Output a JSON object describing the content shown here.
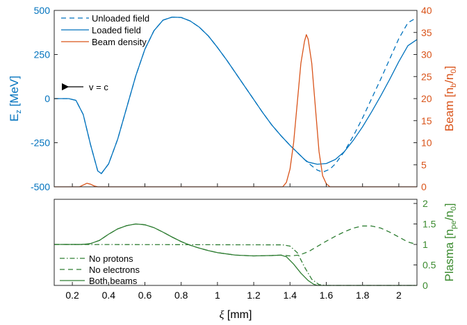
{
  "colors": {
    "left_axis": "#0072BD",
    "right_axis": "#D95319",
    "plasma_axis": "#3A8A2E",
    "field": "#0072BD",
    "beam": "#D95319",
    "plasma": "#2E7D32",
    "axis": "#262626"
  },
  "annotation": {
    "text": "v = c",
    "arrow_direction": "left"
  },
  "chart_data": [
    {
      "type": "line",
      "panel": "top",
      "ylabel_left": "E_z [MeV]",
      "ylabel_right": "Beam [n_b/n_0]",
      "xlim": [
        0.1,
        2.1
      ],
      "ylim_left": [
        -500,
        500
      ],
      "ylim_right": [
        0,
        40
      ],
      "yticks_left": [
        -500,
        -250,
        0,
        250,
        500
      ],
      "yticks_right": [
        0,
        5,
        10,
        15,
        20,
        25,
        30,
        35,
        40
      ],
      "legend": [
        "Unloaded field",
        "Loaded field",
        "Beam density"
      ],
      "legend_position": "top-left",
      "series": [
        {
          "name": "Unloaded field",
          "axis": "left",
          "style": "dashed",
          "x": [
            0.1,
            0.18,
            0.22,
            0.26,
            0.3,
            0.34,
            0.36,
            0.4,
            0.45,
            0.5,
            0.55,
            0.6,
            0.65,
            0.7,
            0.75,
            0.8,
            0.85,
            0.9,
            0.95,
            1.0,
            1.05,
            1.1,
            1.15,
            1.2,
            1.25,
            1.3,
            1.35,
            1.4,
            1.45,
            1.5,
            1.55,
            1.58,
            1.62,
            1.65,
            1.7,
            1.75,
            1.8,
            1.85,
            1.9,
            1.95,
            2.0,
            2.05,
            2.1
          ],
          "y": [
            0,
            0,
            -10,
            -90,
            -260,
            -410,
            -425,
            -370,
            -230,
            -50,
            130,
            280,
            385,
            445,
            462,
            460,
            440,
            405,
            355,
            290,
            220,
            145,
            70,
            -5,
            -80,
            -150,
            -210,
            -265,
            -315,
            -365,
            -405,
            -417,
            -400,
            -370,
            -300,
            -210,
            -110,
            0,
            110,
            225,
            340,
            430,
            460
          ]
        },
        {
          "name": "Loaded field",
          "axis": "left",
          "style": "solid",
          "x": [
            0.1,
            0.18,
            0.22,
            0.26,
            0.3,
            0.34,
            0.36,
            0.4,
            0.45,
            0.5,
            0.55,
            0.6,
            0.65,
            0.7,
            0.75,
            0.8,
            0.85,
            0.9,
            0.95,
            1.0,
            1.05,
            1.1,
            1.15,
            1.2,
            1.25,
            1.3,
            1.35,
            1.4,
            1.45,
            1.48,
            1.5,
            1.55,
            1.6,
            1.65,
            1.7,
            1.75,
            1.8,
            1.85,
            1.9,
            1.95,
            2.0,
            2.05,
            2.1
          ],
          "y": [
            0,
            0,
            -10,
            -90,
            -260,
            -410,
            -425,
            -370,
            -230,
            -50,
            130,
            280,
            385,
            445,
            462,
            460,
            440,
            405,
            355,
            290,
            220,
            145,
            70,
            -5,
            -80,
            -150,
            -210,
            -265,
            -315,
            -345,
            -360,
            -372,
            -368,
            -345,
            -300,
            -235,
            -160,
            -75,
            15,
            110,
            210,
            300,
            335
          ]
        },
        {
          "name": "Beam density",
          "axis": "right",
          "style": "solid",
          "x": [
            0.1,
            0.24,
            0.26,
            0.28,
            0.3,
            0.32,
            0.34,
            1.36,
            1.38,
            1.4,
            1.42,
            1.44,
            1.46,
            1.48,
            1.49,
            1.5,
            1.52,
            1.54,
            1.56,
            1.58,
            1.6,
            1.62,
            2.1
          ],
          "y": [
            0,
            0,
            0.4,
            0.8,
            0.6,
            0.2,
            0,
            0,
            1,
            4,
            10,
            19,
            28,
            33,
            34.5,
            33.5,
            28,
            18,
            8,
            2.5,
            0.7,
            0,
            0
          ]
        }
      ]
    },
    {
      "type": "line",
      "panel": "bottom",
      "xlabel": "ξ [mm]",
      "ylabel_right": "Plasma [n_pe/n_0]",
      "xlim": [
        0.1,
        2.1
      ],
      "xticks": [
        0.2,
        0.4,
        0.6,
        0.8,
        1,
        1.2,
        1.4,
        1.6,
        1.8,
        2
      ],
      "ylim_right": [
        0,
        2
      ],
      "yticks_right": [
        0,
        0.5,
        1,
        1.5,
        2
      ],
      "legend": [
        "No protons",
        "No electrons",
        "Both beams"
      ],
      "legend_position": "bottom-left",
      "series": [
        {
          "name": "No protons",
          "style": "dashdot",
          "x": [
            0.1,
            1.36,
            1.4,
            1.44,
            1.48,
            1.52,
            1.56,
            1.6,
            2.1
          ],
          "y": [
            1,
            0.99,
            0.96,
            0.8,
            0.45,
            0.15,
            0.02,
            0,
            0
          ]
        },
        {
          "name": "No electrons",
          "style": "dashed",
          "x": [
            0.1,
            0.25,
            0.3,
            0.35,
            0.4,
            0.45,
            0.5,
            0.55,
            0.6,
            0.65,
            0.7,
            0.75,
            0.8,
            0.85,
            0.9,
            0.95,
            1.0,
            1.1,
            1.2,
            1.3,
            1.35,
            1.4,
            1.45,
            1.5,
            1.55,
            1.6,
            1.65,
            1.7,
            1.75,
            1.8,
            1.85,
            1.9,
            1.95,
            2.0,
            2.05,
            2.1
          ],
          "y": [
            1,
            1,
            1.02,
            1.1,
            1.25,
            1.38,
            1.46,
            1.5,
            1.48,
            1.41,
            1.3,
            1.18,
            1.07,
            0.98,
            0.91,
            0.85,
            0.8,
            0.74,
            0.72,
            0.73,
            0.74,
            0.72,
            0.74,
            0.82,
            0.95,
            1.08,
            1.2,
            1.31,
            1.4,
            1.45,
            1.45,
            1.4,
            1.3,
            1.18,
            1.06,
            1.0
          ]
        },
        {
          "name": "Both beams",
          "style": "solid",
          "x": [
            0.1,
            0.25,
            0.3,
            0.35,
            0.4,
            0.45,
            0.5,
            0.55,
            0.6,
            0.65,
            0.7,
            0.75,
            0.8,
            0.85,
            0.9,
            0.95,
            1.0,
            1.1,
            1.2,
            1.3,
            1.35,
            1.38,
            1.42,
            1.46,
            1.5,
            1.53,
            1.55,
            2.1
          ],
          "y": [
            1,
            1,
            1.02,
            1.1,
            1.25,
            1.38,
            1.46,
            1.5,
            1.48,
            1.41,
            1.3,
            1.18,
            1.07,
            0.98,
            0.91,
            0.85,
            0.8,
            0.74,
            0.72,
            0.73,
            0.74,
            0.7,
            0.52,
            0.3,
            0.12,
            0.03,
            0,
            0
          ]
        }
      ]
    }
  ]
}
